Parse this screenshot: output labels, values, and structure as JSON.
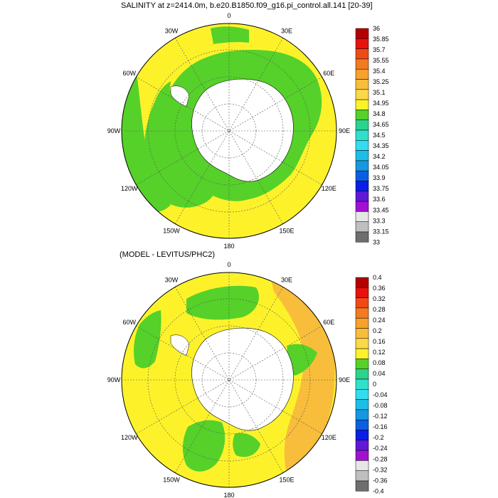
{
  "panels": [
    {
      "title": "SALINITY at z=2414.0m, b.e20.B1850.f09_g16.pi_control.all.141 [20-39]",
      "lon_labels": [
        "0",
        "30E",
        "60E",
        "90E",
        "120E",
        "150E",
        "180",
        "150W",
        "120W",
        "90W",
        "60W",
        "30W"
      ],
      "colorbar": {
        "labels": [
          "36",
          "35.85",
          "35.7",
          "35.55",
          "35.4",
          "35.25",
          "35.1",
          "34.95",
          "34.8",
          "34.65",
          "34.5",
          "34.35",
          "34.2",
          "34.05",
          "33.9",
          "33.75",
          "33.6",
          "33.45",
          "33.3",
          "33.15",
          "33"
        ],
        "colors": [
          "#b30000",
          "#e8110e",
          "#f04a17",
          "#f27b20",
          "#f6a22d",
          "#f8bd3a",
          "#fad847",
          "#fdf22a",
          "#55d12a",
          "#2bd48d",
          "#30e0cb",
          "#33dcf0",
          "#1ebde8",
          "#1597e2",
          "#0a5fe0",
          "#0a1ee5",
          "#6018d6",
          "#a010d2",
          "#e6e6e6",
          "#bfbfbf",
          "#6e6e6e"
        ]
      }
    },
    {
      "title": "(MODEL - LEVITUS/PHC2)",
      "lon_labels": [
        "0",
        "30E",
        "60E",
        "90E",
        "120E",
        "150E",
        "180",
        "150W",
        "120W",
        "90W",
        "60W",
        "30W"
      ],
      "colorbar": {
        "labels": [
          "0.4",
          "0.36",
          "0.32",
          "0.28",
          "0.24",
          "0.2",
          "0.16",
          "0.12",
          "0.08",
          "0.04",
          "0",
          "-0.04",
          "-0.08",
          "-0.12",
          "-0.16",
          "-0.2",
          "-0.24",
          "-0.28",
          "-0.32",
          "-0.36",
          "-0.4"
        ],
        "colors": [
          "#b30000",
          "#e8110e",
          "#f04a17",
          "#f27b20",
          "#f6a22d",
          "#f8bd3a",
          "#fad847",
          "#fdf22a",
          "#55d12a",
          "#2bd48d",
          "#30e0cb",
          "#33dcf0",
          "#1ebde8",
          "#1597e2",
          "#0a5fe0",
          "#0a1ee5",
          "#6018d6",
          "#a010d2",
          "#e6e6e6",
          "#bfbfbf",
          "#6e6e6e"
        ]
      }
    }
  ],
  "colors": {
    "ocean_yellow": "#fdf22a",
    "ocean_green": "#55d12a",
    "ocean_orange": "#f8bd3a",
    "land": "#ffffff"
  }
}
